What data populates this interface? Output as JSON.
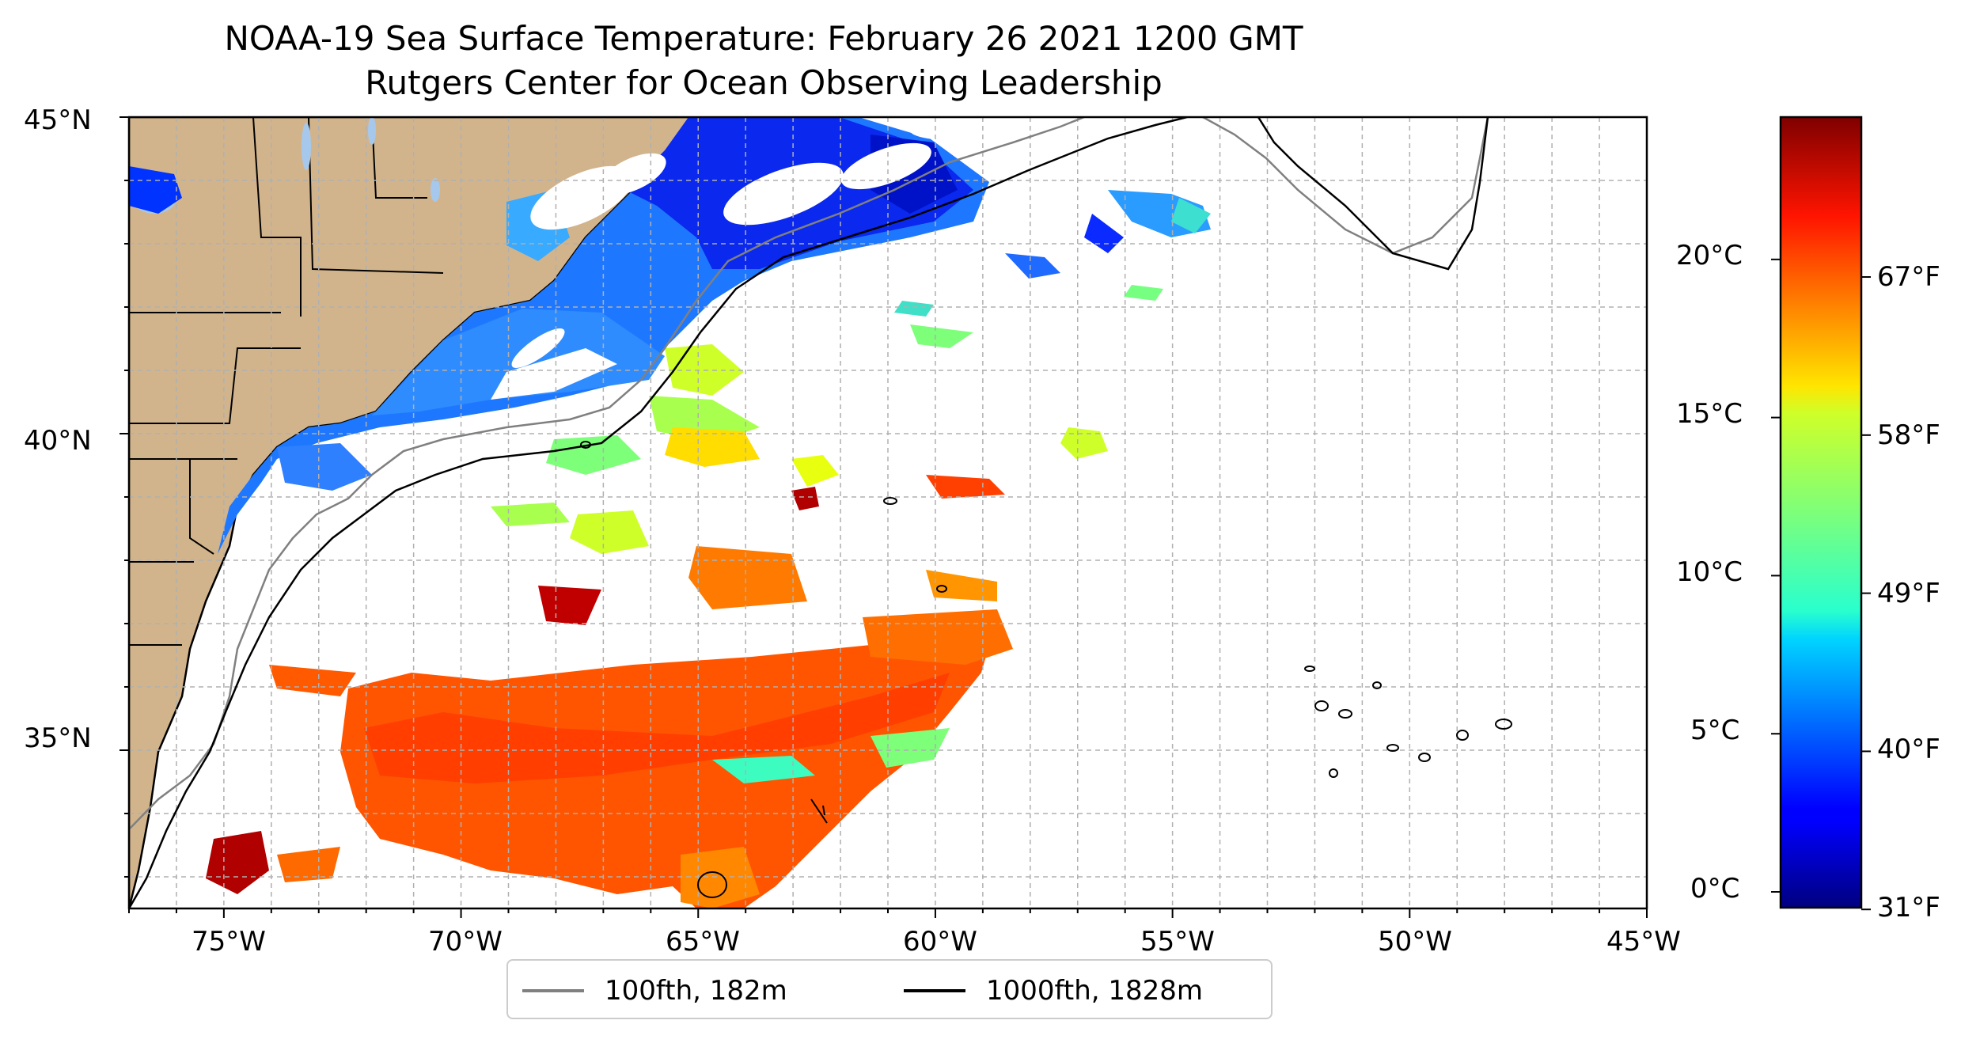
{
  "title": "NOAA-19 Sea Surface Temperature: February 26 2021 1200 GMT",
  "subtitle": "Rutgers Center for Ocean Observing Leadership",
  "map": {
    "lon_range": [
      -77,
      -45
    ],
    "lat_range": [
      32.5,
      45
    ],
    "land_color": "#d2b48c",
    "lake_color": "#a6c8ec",
    "grid": "on, dashed, every 1 degree",
    "x_tick_labels": [
      "75°W",
      "70°W",
      "65°W",
      "60°W",
      "55°W",
      "50°W",
      "45°W"
    ],
    "y_tick_labels": [
      "45°N",
      "40°N",
      "35°N"
    ]
  },
  "legend": {
    "placement": "bottom-center",
    "items": [
      {
        "label": "100fth, 182m",
        "color": "#808080"
      },
      {
        "label": "1000fth, 1828m",
        "color": "#000000"
      }
    ]
  },
  "colorbar": {
    "colormap": "jet",
    "range_celsius": [
      -0.5,
      24.5
    ],
    "celsius_labels": [
      "20°C",
      "15°C",
      "10°C",
      "5°C",
      "0°C"
    ],
    "fahrenheit_labels": [
      "67°F",
      "58°F",
      "49°F",
      "40°F",
      "31°F"
    ]
  }
}
